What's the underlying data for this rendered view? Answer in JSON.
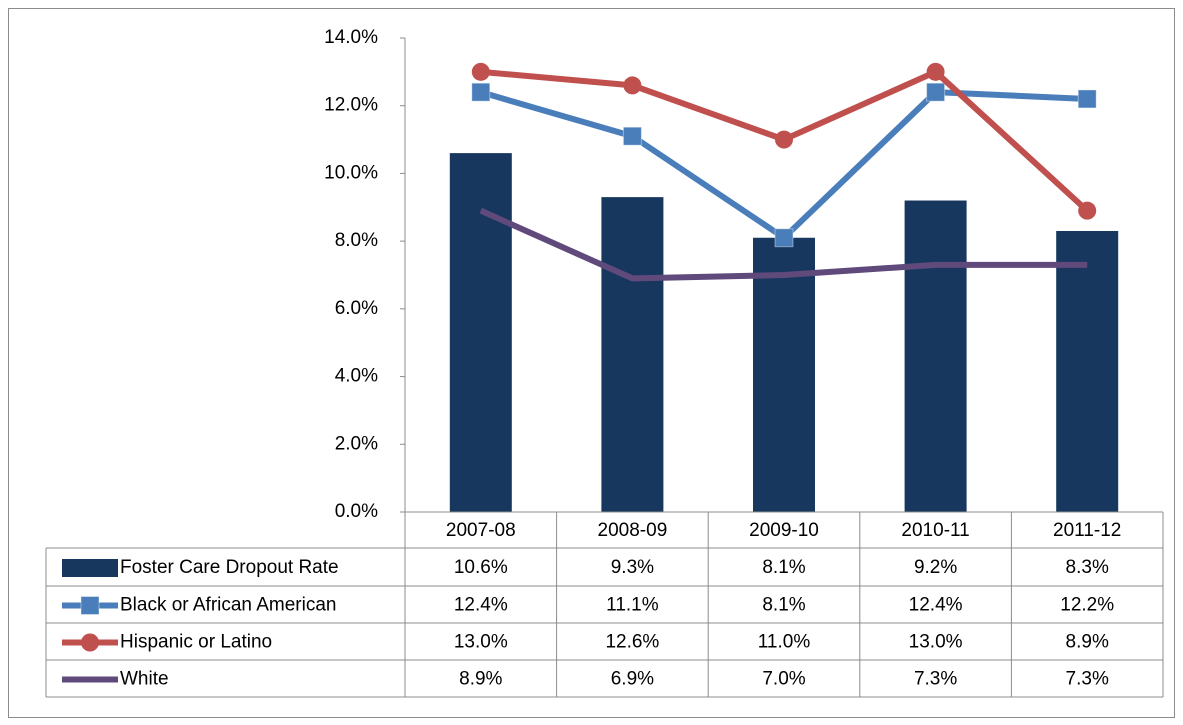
{
  "chart_data": {
    "type": "bar",
    "categories": [
      "2007-08",
      "2008-09",
      "2009-10",
      "2010-11",
      "2011-12"
    ],
    "ylim": [
      0,
      14
    ],
    "yticks": [
      {
        "value": 0,
        "label": "0.0%"
      },
      {
        "value": 2,
        "label": "2.0%"
      },
      {
        "value": 4,
        "label": "4.0%"
      },
      {
        "value": 6,
        "label": "6.0%"
      },
      {
        "value": 8,
        "label": "8.0%"
      },
      {
        "value": 10,
        "label": "10.0%"
      },
      {
        "value": 12,
        "label": "12.0%"
      },
      {
        "value": 14,
        "label": "14.0%"
      }
    ],
    "grid": false,
    "data_table": true,
    "series": [
      {
        "name": "Foster Care Dropout Rate",
        "type": "bar",
        "color": "#17375e",
        "values": [
          10.6,
          9.3,
          8.1,
          9.2,
          8.3
        ],
        "value_labels": [
          "10.6%",
          "9.3%",
          "8.1%",
          "9.2%",
          "8.3%"
        ]
      },
      {
        "name": "Black or African American",
        "type": "line",
        "marker": "square",
        "color": "#4a7ebb",
        "values": [
          12.4,
          11.1,
          8.1,
          12.4,
          12.2
        ],
        "value_labels": [
          "12.4%",
          "11.1%",
          "8.1%",
          "12.4%",
          "12.2%"
        ]
      },
      {
        "name": "Hispanic or Latino",
        "type": "line",
        "marker": "circle",
        "color": "#c0504d",
        "values": [
          13.0,
          12.6,
          11.0,
          13.0,
          8.9
        ],
        "value_labels": [
          "13.0%",
          "12.6%",
          "11.0%",
          "13.0%",
          "8.9%"
        ]
      },
      {
        "name": "White",
        "type": "line",
        "color": "#604a7b",
        "values": [
          8.9,
          6.9,
          7.0,
          7.3,
          7.3
        ],
        "value_labels": [
          "8.9%",
          "6.9%",
          "7.0%",
          "7.3%",
          "7.3%"
        ]
      }
    ]
  }
}
